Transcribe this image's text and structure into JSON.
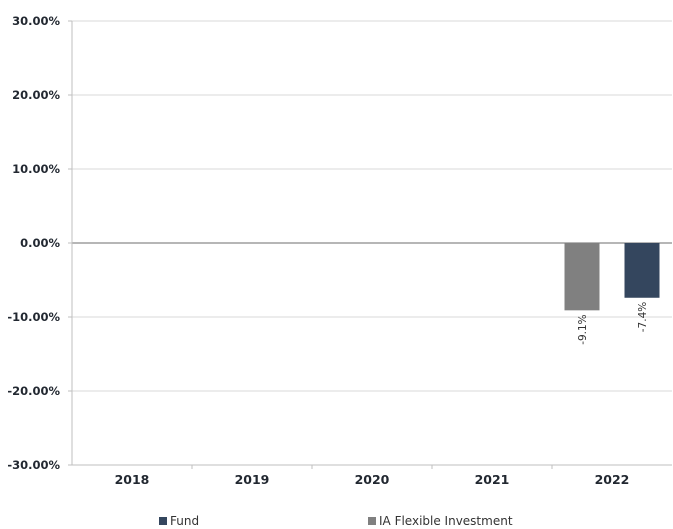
{
  "chart_data": {
    "type": "bar",
    "categories": [
      "2018",
      "2019",
      "2020",
      "2021",
      "2022"
    ],
    "series": [
      {
        "name": "IA Flexible Investment",
        "color": "#808080",
        "values": [
          null,
          null,
          null,
          null,
          -9.1
        ],
        "labels": [
          "",
          "",
          "",
          "",
          "-9.1%"
        ]
      },
      {
        "name": "Fund",
        "color": "#34465e",
        "values": [
          null,
          null,
          null,
          null,
          -7.4
        ],
        "labels": [
          "",
          "",
          "",
          "",
          "-7.4%"
        ]
      }
    ],
    "ylim": [
      -30,
      30
    ],
    "yticks": [
      30,
      20,
      10,
      0,
      -10,
      -20,
      -30
    ],
    "ytick_labels": [
      "30.00%",
      "20.00%",
      "10.00%",
      "0.00%",
      "-10.00%",
      "-20.00%",
      "-30.00%"
    ],
    "title": "",
    "xlabel": "",
    "ylabel": "",
    "grid": true,
    "legend_position": "bottom"
  }
}
